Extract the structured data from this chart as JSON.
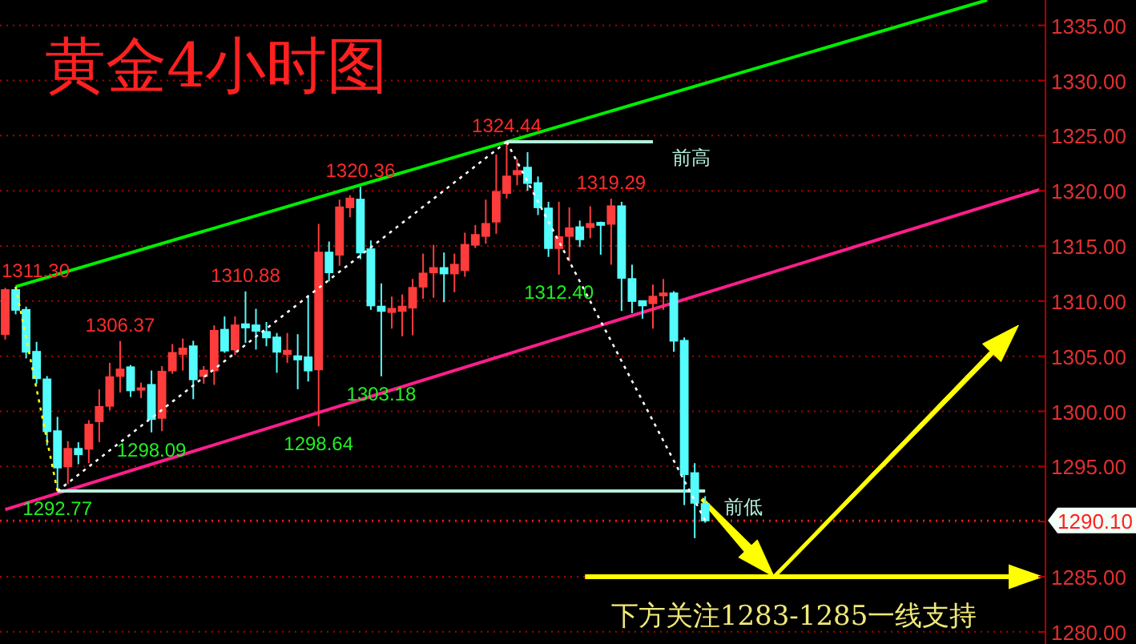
{
  "chart_data": {
    "type": "candlestick",
    "title": "黄金4小时图",
    "categories": [
      null,
      null,
      null,
      null,
      null,
      null,
      null,
      null,
      null,
      null,
      null,
      null,
      null,
      null,
      null,
      null,
      null,
      null,
      null,
      null,
      null,
      null,
      null,
      null,
      null,
      null,
      null,
      null,
      null,
      null,
      null,
      null,
      null,
      null,
      null,
      null,
      null,
      null,
      null,
      null,
      null,
      null,
      null,
      null,
      null,
      null,
      null,
      null,
      null,
      null,
      null,
      null,
      null,
      null,
      null,
      null,
      null,
      null,
      null,
      null,
      null,
      null,
      null,
      null,
      null,
      null,
      null,
      null,
      null,
      null,
      null,
      null,
      null,
      null,
      null,
      null,
      null,
      null,
      null,
      null,
      null,
      null,
      null,
      null,
      null,
      null,
      null,
      null,
      null,
      null,
      null,
      null,
      null,
      null,
      null,
      null,
      null,
      null,
      null,
      null
    ],
    "ohlc": [
      [
        1307.0,
        1311.2,
        1306.5,
        1311.0
      ],
      [
        1311.0,
        1311.3,
        1308.8,
        1309.2
      ],
      [
        1309.2,
        1309.5,
        1304.8,
        1305.4
      ],
      [
        1305.4,
        1306.3,
        1302.5,
        1303.0
      ],
      [
        1302.9,
        1303.2,
        1296.9,
        1298.2
      ],
      [
        1298.2,
        1299.5,
        1292.77,
        1294.9
      ],
      [
        1295.0,
        1297.3,
        1293.4,
        1296.6
      ],
      [
        1296.6,
        1297.2,
        1295.2,
        1296.1
      ],
      [
        1296.6,
        1299.2,
        1295.3,
        1298.8
      ],
      [
        1299.1,
        1302.0,
        1297.2,
        1300.4
      ],
      [
        1300.5,
        1304.4,
        1300.1,
        1303.1
      ],
      [
        1303.2,
        1306.37,
        1301.7,
        1303.8
      ],
      [
        1304.0,
        1304.2,
        1301.3,
        1301.9
      ],
      [
        1302.0,
        1302.6,
        1301.2,
        1302.1
      ],
      [
        1302.4,
        1303.7,
        1298.09,
        1299.3
      ],
      [
        1299.4,
        1304.1,
        1298.2,
        1303.6
      ],
      [
        1303.7,
        1306.1,
        1303.4,
        1305.3
      ],
      [
        1305.2,
        1306.6,
        1303.7,
        1305.7
      ],
      [
        1305.9,
        1306.4,
        1301.1,
        1302.9
      ],
      [
        1303.2,
        1304.1,
        1302.5,
        1303.7
      ],
      [
        1303.7,
        1307.8,
        1302.4,
        1307.3
      ],
      [
        1307.4,
        1308.6,
        1305.3,
        1305.5
      ],
      [
        1305.6,
        1308.6,
        1305.1,
        1307.8
      ],
      [
        1307.9,
        1310.88,
        1306.2,
        1307.6
      ],
      [
        1307.8,
        1309.3,
        1305.6,
        1307.3
      ],
      [
        1307.2,
        1308.1,
        1305.9,
        1306.7
      ],
      [
        1306.7,
        1307.1,
        1303.5,
        1305.4
      ],
      [
        1305.2,
        1307.1,
        1304.4,
        1305.5
      ],
      [
        1305.0,
        1307.0,
        1302.0,
        1304.7
      ],
      [
        1304.9,
        1310.4,
        1302.7,
        1303.7
      ],
      [
        1303.8,
        1317.0,
        1298.64,
        1314.4
      ],
      [
        1314.4,
        1315.4,
        1311.8,
        1312.6
      ],
      [
        1314.2,
        1319.2,
        1313.2,
        1318.5
      ],
      [
        1318.5,
        1319.6,
        1317.6,
        1319.3
      ],
      [
        1319.2,
        1320.36,
        1313.8,
        1314.4
      ],
      [
        1314.7,
        1315.5,
        1309.2,
        1309.6
      ],
      [
        1309.5,
        1311.6,
        1303.18,
        1309.1
      ],
      [
        1309.0,
        1310.4,
        1307.5,
        1309.3
      ],
      [
        1309.1,
        1310.6,
        1306.8,
        1309.5
      ],
      [
        1309.4,
        1312.0,
        1306.9,
        1311.2
      ],
      [
        1311.3,
        1314.3,
        1310.2,
        1312.5
      ],
      [
        1312.6,
        1315.1,
        1310.3,
        1313.0
      ],
      [
        1313.0,
        1314.4,
        1309.9,
        1312.5
      ],
      [
        1312.5,
        1314.3,
        1310.8,
        1313.3
      ],
      [
        1312.8,
        1316.2,
        1312.2,
        1315.1
      ],
      [
        1315.1,
        1316.9,
        1314.8,
        1316.0
      ],
      [
        1315.9,
        1319.2,
        1315.2,
        1317.0
      ],
      [
        1317.2,
        1323.3,
        1316.1,
        1319.9
      ],
      [
        1319.8,
        1324.44,
        1319.3,
        1321.3
      ],
      [
        1321.5,
        1322.9,
        1320.5,
        1321.8
      ],
      [
        1322.1,
        1323.5,
        1320.0,
        1320.7
      ],
      [
        1320.7,
        1321.3,
        1317.8,
        1318.5
      ],
      [
        1318.4,
        1319.0,
        1314.0,
        1314.8
      ],
      [
        1314.8,
        1319.0,
        1312.4,
        1315.8
      ],
      [
        1315.9,
        1318.5,
        1313.6,
        1316.6
      ],
      [
        1316.7,
        1317.3,
        1314.9,
        1315.6
      ],
      [
        1316.7,
        1318.6,
        1315.7,
        1317.0
      ],
      [
        1317.1,
        1317.2,
        1314.2,
        1316.9
      ],
      [
        1317.0,
        1319.29,
        1313.3,
        1318.6
      ],
      [
        1318.6,
        1319.0,
        1309.1,
        1312.1
      ],
      [
        1312.0,
        1313.3,
        1308.9,
        1310.0
      ],
      [
        1310.0,
        1310.0,
        1308.4,
        1309.6
      ],
      [
        1309.8,
        1311.5,
        1307.5,
        1310.4
      ],
      [
        1310.5,
        1312.0,
        1309.2,
        1310.7
      ],
      [
        1310.7,
        1310.9,
        1305.4,
        1306.4
      ],
      [
        1306.4,
        1306.7,
        1291.5,
        1294.3
      ],
      [
        1294.4,
        1295.3,
        1288.5,
        1291.7
      ],
      [
        1291.6,
        1292.3,
        1289.9,
        1290.1
      ],
      null,
      null,
      null,
      null,
      null,
      null,
      null,
      null,
      null,
      null,
      null,
      null,
      null,
      null,
      null,
      null,
      null,
      null,
      null,
      null,
      null,
      null,
      null,
      null,
      null,
      null,
      null,
      null,
      null,
      null,
      null,
      null
    ],
    "colors": [
      "#ff3c3c",
      "#54fcfc",
      "#54fcfc",
      "#54fcfc",
      "#54fcfc",
      "#54fcfc",
      "#ff3c3c",
      "#54fcfc",
      "#ff3c3c",
      "#ff3c3c",
      "#ff3c3c",
      "#ff3c3c",
      "#54fcfc",
      "#ff3c3c",
      "#54fcfc",
      "#ff3c3c",
      "#ff3c3c",
      "#ff3c3c",
      "#54fcfc",
      "#ff3c3c",
      "#ff3c3c",
      "#54fcfc",
      "#ff3c3c",
      "#54fcfc",
      "#54fcfc",
      "#54fcfc",
      "#54fcfc",
      "#ff3c3c",
      "#54fcfc",
      "#54fcfc",
      "#ff3c3c",
      "#54fcfc",
      "#ff3c3c",
      "#ff3c3c",
      "#54fcfc",
      "#54fcfc",
      "#54fcfc",
      "#ff3c3c",
      "#ff3c3c",
      "#ff3c3c",
      "#ff3c3c",
      "#ff3c3c",
      "#54fcfc",
      "#ff3c3c",
      "#ff3c3c",
      "#ff3c3c",
      "#ff3c3c",
      "#ff3c3c",
      "#ff3c3c",
      "#ff3c3c",
      "#54fcfc",
      "#54fcfc",
      "#54fcfc",
      "#ff3c3c",
      "#ff3c3c",
      "#54fcfc",
      "#ff3c3c",
      "#54fcfc",
      "#ff3c3c",
      "#54fcfc",
      "#54fcfc",
      "#54fcfc",
      "#ff3c3c",
      "#ff3c3c",
      "#54fcfc",
      "#54fcfc",
      "#54fcfc",
      "#54fcfc",
      null,
      null,
      null,
      null,
      null,
      null,
      null,
      null,
      null,
      null,
      null,
      null,
      null,
      null,
      null,
      null,
      null,
      null,
      null,
      null,
      null,
      null,
      null,
      null,
      null,
      null,
      null,
      null,
      null,
      null,
      null,
      null
    ],
    "series": [
      {
        "type": "line",
        "color": "#00ee00",
        "values": [
          null,
          1311.3,
          null,
          null,
          null,
          null,
          null,
          null,
          null,
          null,
          null,
          null,
          null,
          null,
          null,
          null,
          null,
          null,
          null,
          null,
          null,
          null,
          null,
          null,
          null,
          null,
          null,
          null,
          null,
          null,
          null,
          null,
          null,
          null,
          null,
          null,
          null,
          null,
          null,
          null,
          null,
          null,
          null,
          null,
          null,
          null,
          null,
          null,
          1324.44,
          null,
          null,
          null,
          null,
          null,
          null,
          null,
          null,
          null,
          null,
          null,
          null,
          null,
          null,
          null,
          null,
          null,
          null,
          null,
          null,
          null,
          null,
          null,
          null,
          null,
          null,
          null,
          null,
          null,
          null,
          null,
          null,
          null,
          null,
          null,
          null,
          null,
          null,
          null,
          null,
          null,
          null,
          null,
          null,
          null,
          1337.3,
          null,
          null,
          null,
          null,
          null
        ]
      },
      {
        "type": "line",
        "color": "#ff1e8c",
        "values": [
          1291.1,
          null,
          null,
          null,
          null,
          null,
          null,
          null,
          null,
          null,
          null,
          null,
          null,
          null,
          null,
          null,
          null,
          null,
          null,
          null,
          null,
          null,
          null,
          null,
          null,
          null,
          null,
          null,
          null,
          null,
          null,
          null,
          null,
          null,
          null,
          null,
          null,
          null,
          null,
          null,
          null,
          null,
          null,
          null,
          null,
          null,
          null,
          null,
          null,
          null,
          null,
          null,
          null,
          null,
          null,
          null,
          null,
          null,
          null,
          null,
          null,
          null,
          null,
          null,
          null,
          null,
          null,
          null,
          null,
          null,
          null,
          null,
          null,
          null,
          null,
          null,
          null,
          null,
          null,
          null,
          null,
          null,
          null,
          null,
          null,
          null,
          null,
          null,
          null,
          null,
          null,
          null,
          null,
          null,
          null,
          null,
          null,
          null,
          null,
          1320.1
        ]
      },
      {
        "type": "line",
        "name": "前高",
        "color": "#b4f0dc",
        "values": [
          null,
          null,
          null,
          null,
          null,
          null,
          null,
          null,
          null,
          null,
          null,
          null,
          null,
          null,
          null,
          null,
          null,
          null,
          null,
          null,
          null,
          null,
          null,
          null,
          null,
          null,
          null,
          null,
          null,
          null,
          null,
          null,
          null,
          null,
          null,
          null,
          null,
          null,
          null,
          null,
          null,
          null,
          null,
          null,
          null,
          null,
          null,
          null,
          1324.44,
          null,
          null,
          null,
          null,
          null,
          null,
          null,
          null,
          null,
          null,
          null,
          null,
          null,
          1324.44,
          null,
          null,
          null,
          null,
          null,
          null,
          null,
          null,
          null,
          null,
          null,
          null,
          null,
          null,
          null,
          null,
          null,
          null,
          null,
          null,
          null,
          null,
          null,
          null,
          null,
          null,
          null,
          null,
          null,
          null,
          null,
          null,
          null,
          null,
          null,
          null,
          null
        ]
      },
      {
        "type": "line",
        "name": "前低",
        "color": "#b4f0dc",
        "values": [
          null,
          null,
          null,
          null,
          null,
          1292.77,
          null,
          null,
          null,
          null,
          null,
          null,
          null,
          null,
          null,
          null,
          null,
          null,
          null,
          null,
          null,
          null,
          null,
          null,
          null,
          null,
          null,
          null,
          null,
          null,
          null,
          null,
          null,
          null,
          null,
          null,
          null,
          null,
          null,
          null,
          null,
          null,
          null,
          null,
          null,
          null,
          null,
          null,
          null,
          null,
          null,
          null,
          null,
          null,
          null,
          null,
          null,
          null,
          null,
          null,
          null,
          null,
          null,
          null,
          null,
          null,
          null,
          1292.77,
          null,
          null,
          null,
          null,
          null,
          null,
          null,
          null,
          null,
          null,
          null,
          null,
          null,
          null,
          null,
          null,
          null,
          null,
          null,
          null,
          null,
          null,
          null,
          null,
          null,
          null,
          null,
          null,
          null,
          null,
          null,
          null
        ]
      },
      {
        "type": "line",
        "color": "#ffff00",
        "line_style": "dotted",
        "values": [
          null,
          1311.3,
          null,
          null,
          null,
          1292.77,
          null,
          null,
          null,
          null,
          null,
          null,
          null,
          null,
          null,
          null,
          null,
          null,
          null,
          null,
          null,
          null,
          null,
          null,
          null,
          null,
          null,
          null,
          null,
          null,
          null,
          null,
          null,
          null,
          null,
          null,
          null,
          null,
          null,
          null,
          null,
          null,
          null,
          null,
          null,
          null,
          null,
          null,
          null,
          null,
          null,
          null,
          null,
          null,
          null,
          null,
          null,
          null,
          null,
          null,
          null,
          null,
          null,
          null,
          null,
          null,
          null,
          null,
          null,
          null,
          null,
          null,
          null,
          null,
          null,
          null,
          null,
          null,
          null,
          null,
          null,
          null,
          null,
          null,
          null,
          null,
          null,
          null,
          null,
          null,
          null,
          null,
          null,
          null,
          null,
          null,
          null,
          null,
          null,
          null
        ]
      },
      {
        "type": "line",
        "color": "#ffffff",
        "line_style": "dotted",
        "values": [
          null,
          null,
          null,
          null,
          null,
          1292.77,
          null,
          null,
          null,
          null,
          null,
          null,
          null,
          null,
          null,
          null,
          null,
          null,
          null,
          null,
          null,
          null,
          null,
          null,
          null,
          null,
          null,
          null,
          null,
          null,
          null,
          null,
          null,
          null,
          null,
          null,
          null,
          null,
          null,
          null,
          null,
          null,
          null,
          null,
          null,
          null,
          null,
          null,
          1324.44,
          null,
          null,
          null,
          null,
          null,
          null,
          null,
          null,
          null,
          null,
          null,
          null,
          null,
          null,
          null,
          null,
          null,
          null,
          null,
          null,
          null,
          null,
          null,
          null,
          null,
          null,
          null,
          null,
          null,
          null,
          null,
          null,
          null,
          null,
          null,
          null,
          null,
          null,
          null,
          null,
          null,
          null,
          null,
          null,
          null,
          null,
          null,
          null,
          null,
          null,
          null
        ]
      },
      {
        "type": "line",
        "color": "#ffffff",
        "line_style": "dotted",
        "values": [
          null,
          null,
          null,
          null,
          null,
          null,
          null,
          null,
          null,
          null,
          null,
          null,
          null,
          null,
          null,
          null,
          null,
          null,
          null,
          null,
          null,
          null,
          null,
          null,
          null,
          null,
          null,
          null,
          null,
          null,
          null,
          null,
          null,
          null,
          null,
          null,
          null,
          null,
          null,
          null,
          null,
          null,
          null,
          null,
          null,
          null,
          null,
          null,
          1324.44,
          null,
          null,
          null,
          null,
          null,
          null,
          null,
          null,
          null,
          null,
          null,
          null,
          null,
          null,
          null,
          null,
          null,
          null,
          1290.1,
          null,
          null,
          null,
          null,
          null,
          null,
          null,
          null,
          null,
          null,
          null,
          null,
          null,
          null,
          null,
          null,
          null,
          null,
          null,
          null,
          null,
          null,
          null,
          null,
          null,
          null,
          null,
          null,
          null,
          null,
          null,
          null
        ]
      }
    ],
    "annotations": [
      {
        "text": "1311.30",
        "y": 1311.3
      },
      {
        "text": "1306.37",
        "y": 1306.37
      },
      {
        "text": "1310.88",
        "y": 1310.88
      },
      {
        "text": "1320.36",
        "y": 1320.36
      },
      {
        "text": "1324.44",
        "y": 1324.44
      },
      {
        "text": "1319.29",
        "y": 1319.29
      },
      {
        "text": "1292.77",
        "y": 1292.77
      },
      {
        "text": "1298.09",
        "y": 1298.09
      },
      {
        "text": "1298.64",
        "y": 1298.64
      },
      {
        "text": "1303.18",
        "y": 1303.18
      },
      {
        "text": "1312.40",
        "y": 1312.4
      }
    ],
    "ref_lines": [
      {
        "axis": "y",
        "value": 1290.1,
        "label": "1290.10",
        "color": "#ff2020",
        "line_style": "dotted"
      },
      {
        "axis": "y",
        "value": 1285,
        "label": "下方关注1283-1285一线支持",
        "color": "#ffff00",
        "line_style": "solid"
      }
    ],
    "ylim": [
      1278.9,
      1337.3
    ],
    "yticks": [
      {
        "value": 1280,
        "label": "1280.00"
      },
      {
        "value": 1285,
        "label": "1285.00"
      },
      {
        "value": 1290,
        "label": null
      },
      {
        "value": 1295,
        "label": "1295.00"
      },
      {
        "value": 1300,
        "label": "1300.00"
      },
      {
        "value": 1305,
        "label": "1305.00"
      },
      {
        "value": 1310,
        "label": "1310.00"
      },
      {
        "value": 1315,
        "label": "1315.00"
      },
      {
        "value": 1320,
        "label": "1320.00"
      },
      {
        "value": 1325,
        "label": "1325.00"
      },
      {
        "value": 1330,
        "label": "1330.00"
      },
      {
        "value": 1335,
        "label": "1335.00"
      }
    ],
    "tick_labels": "y",
    "grid": "y"
  }
}
